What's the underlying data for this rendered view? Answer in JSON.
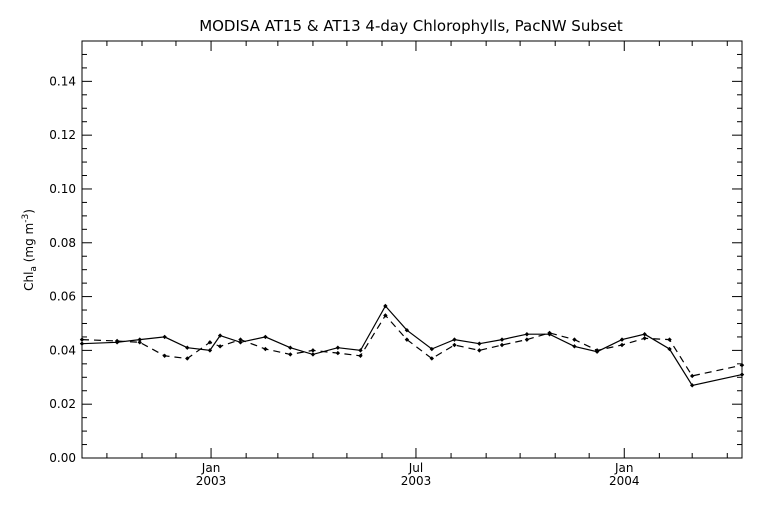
{
  "chart_data": {
    "type": "line",
    "title": "MODISA AT15 & AT13 4-day Chlorophylls, PacNW Subset",
    "xlabel": "",
    "ylabel": {
      "prefix": "Chl",
      "subscript": "a",
      "unit_open": " (mg m",
      "unit_sup": "-3",
      "unit_close": ")"
    },
    "ylim": [
      0.0,
      0.155
    ],
    "yticks": [
      0.0,
      0.02,
      0.04,
      0.06,
      0.08,
      0.1,
      0.12,
      0.14
    ],
    "ytick_labels": [
      "0.00",
      "0.02",
      "0.04",
      "0.06",
      "0.08",
      "0.10",
      "0.12",
      "0.14"
    ],
    "xlim": [
      "2002-09-09",
      "2004-04-14"
    ],
    "xticks": [
      {
        "date": "2003-01-01",
        "month": "Jan",
        "year": "2003"
      },
      {
        "date": "2003-07-01",
        "month": "Jul",
        "year": "2003"
      },
      {
        "date": "2004-01-01",
        "month": "Jan",
        "year": "2004"
      }
    ],
    "grid": false,
    "series": [
      {
        "style": "solid",
        "x": [
          "2002-09-09",
          "2002-10-10",
          "2002-10-30",
          "2002-11-21",
          "2002-12-11",
          "2002-12-31",
          "2003-01-09",
          "2003-01-27",
          "2003-02-18",
          "2003-03-12",
          "2003-04-01",
          "2003-04-23",
          "2003-05-13",
          "2003-06-04",
          "2003-06-23",
          "2003-07-15",
          "2003-08-04",
          "2003-08-26",
          "2003-09-15",
          "2003-10-07",
          "2003-10-27",
          "2003-11-18",
          "2003-12-08",
          "2003-12-30",
          "2004-01-19",
          "2004-02-10",
          "2004-03-01",
          "2004-04-14"
        ],
        "values": [
          0.0425,
          0.043,
          0.044,
          0.045,
          0.041,
          0.04,
          0.0455,
          0.043,
          0.045,
          0.041,
          0.0385,
          0.041,
          0.04,
          0.0565,
          0.0475,
          0.0405,
          0.044,
          0.0425,
          0.044,
          0.046,
          0.046,
          0.0415,
          0.0395,
          0.044,
          0.046,
          0.0405,
          0.027,
          0.031
        ]
      },
      {
        "style": "dashed",
        "x": [
          "2002-09-09",
          "2002-10-10",
          "2002-10-30",
          "2002-11-21",
          "2002-12-11",
          "2002-12-31",
          "2003-01-09",
          "2003-01-27",
          "2003-02-18",
          "2003-03-12",
          "2003-04-01",
          "2003-04-23",
          "2003-05-13",
          "2003-06-04",
          "2003-06-23",
          "2003-07-15",
          "2003-08-04",
          "2003-08-26",
          "2003-09-15",
          "2003-10-07",
          "2003-10-27",
          "2003-11-18",
          "2003-12-08",
          "2003-12-30",
          "2004-01-19",
          "2004-02-10",
          "2004-03-01",
          "2004-04-14"
        ],
        "values": [
          0.044,
          0.0435,
          0.043,
          0.038,
          0.037,
          0.043,
          0.0415,
          0.044,
          0.0405,
          0.0385,
          0.04,
          0.039,
          0.038,
          0.053,
          0.044,
          0.037,
          0.042,
          0.04,
          0.042,
          0.044,
          0.0465,
          0.044,
          0.04,
          0.042,
          0.0445,
          0.044,
          0.0305,
          0.0345
        ]
      }
    ]
  }
}
